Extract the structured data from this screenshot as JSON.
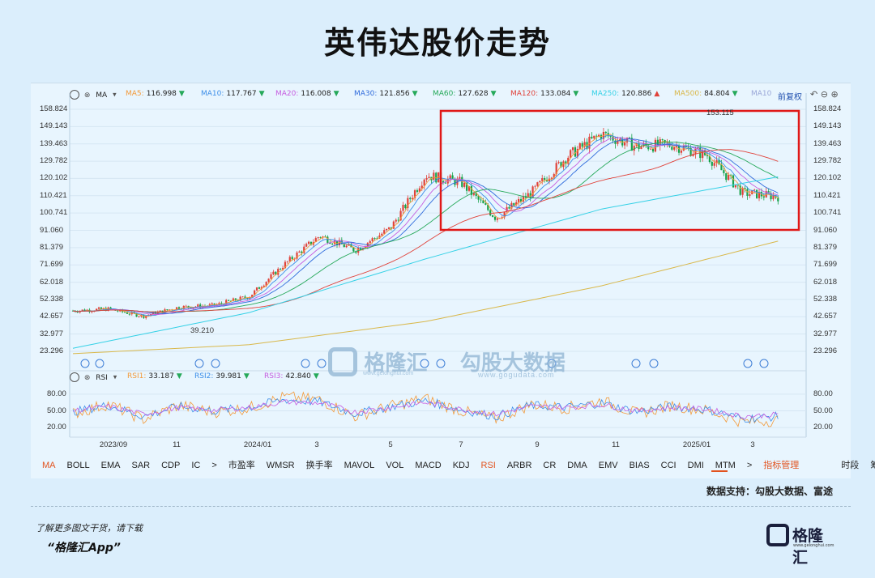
{
  "title": "英伟达股价走势",
  "main_legend": {
    "indicator": "MA",
    "items": [
      {
        "label": "MA5:",
        "value": "116.998",
        "color": "#f39a3a",
        "arrow": "▼"
      },
      {
        "label": "MA10:",
        "value": "117.767",
        "color": "#3d8ee8",
        "arrow": "▼"
      },
      {
        "label": "MA20:",
        "value": "116.008",
        "color": "#c65ce0",
        "arrow": "▼"
      },
      {
        "label": "MA30:",
        "value": "121.856",
        "color": "#2f6bdc",
        "arrow": "▼"
      },
      {
        "label": "MA60:",
        "value": "127.628",
        "color": "#26a95a",
        "arrow": "▼"
      },
      {
        "label": "MA120:",
        "value": "133.084",
        "color": "#e0423a",
        "arrow": "▼"
      },
      {
        "label": "MA250:",
        "value": "120.886",
        "color": "#35d1e6",
        "arrow": "▲"
      },
      {
        "label": "MA500:",
        "value": "84.804",
        "color": "#d9b84a",
        "arrow": "▼"
      },
      {
        "label": "MA10",
        "value": "",
        "color": "#9aa7d8",
        "arrow": ""
      }
    ],
    "adjust": "前复权"
  },
  "rsi_legend": {
    "indicator": "RSI",
    "items": [
      {
        "label": "RSI1:",
        "value": "33.187",
        "color": "#f39a3a",
        "arrow": "▼"
      },
      {
        "label": "RSI2:",
        "value": "39.981",
        "color": "#3d8ee8",
        "arrow": "▼"
      },
      {
        "label": "RSI3:",
        "value": "42.840",
        "color": "#c65ce0",
        "arrow": "▼"
      }
    ]
  },
  "chart_data": [
    {
      "type": "candlestick",
      "title": "英伟达股价走势",
      "y_ticks": [
        "158.824",
        "149.143",
        "139.463",
        "129.782",
        "120.102",
        "110.421",
        "100.741",
        "91.060",
        "81.379",
        "71.699",
        "62.018",
        "52.338",
        "42.657",
        "32.977",
        "23.296"
      ],
      "ylim": [
        23.296,
        158.824
      ],
      "x_ticks": [
        "2023/09",
        "11",
        "2024/01",
        "3",
        "5",
        "7",
        "9",
        "11",
        "2025/01",
        "3"
      ],
      "annotations": [
        {
          "text": "39.210",
          "kind": "low"
        },
        {
          "text": "153.115",
          "kind": "high"
        }
      ],
      "highlight_box": "2024/06 – 2025/04, 91.060 – 158.824",
      "series": [
        {
          "name": "Close",
          "x": [
            "2023/08",
            "2023/09",
            "2023/10",
            "2023/11",
            "2023/12",
            "2024/01",
            "2024/02",
            "2024/03",
            "2024/04",
            "2024/05",
            "2024/06",
            "2024/07",
            "2024/08",
            "2024/09",
            "2024/10",
            "2024/11",
            "2024/12",
            "2025/01",
            "2025/02",
            "2025/03",
            "2025/04"
          ],
          "values": [
            46,
            47,
            43,
            48,
            49,
            54,
            72,
            88,
            80,
            92,
            122,
            118,
            98,
            112,
            132,
            145,
            138,
            139,
            133,
            112,
            110
          ]
        },
        {
          "name": "MA250",
          "x": [
            "2023/08",
            "2024/01",
            "2024/06",
            "2024/11",
            "2025/04"
          ],
          "values": [
            25,
            45,
            75,
            103,
            121
          ]
        },
        {
          "name": "MA500",
          "x": [
            "2023/08",
            "2024/01",
            "2024/06",
            "2024/11",
            "2025/04"
          ],
          "values": [
            22,
            27,
            40,
            60,
            85
          ]
        }
      ]
    },
    {
      "type": "line",
      "title": "RSI",
      "y_ticks": [
        "80.00",
        "50.00",
        "20.00"
      ],
      "ylim": [
        10,
        90
      ],
      "x_ticks": [
        "2023/09",
        "11",
        "2024/01",
        "3",
        "5",
        "7",
        "9",
        "11",
        "2025/01",
        "3"
      ],
      "series": [
        {
          "name": "RSI1",
          "values": [
            45,
            62,
            35,
            60,
            48,
            55,
            75,
            70,
            40,
            58,
            72,
            50,
            35,
            62,
            55,
            68,
            45,
            60,
            50,
            30,
            33
          ]
        },
        {
          "name": "RSI2",
          "values": [
            48,
            60,
            40,
            58,
            50,
            56,
            70,
            66,
            45,
            57,
            68,
            52,
            40,
            60,
            56,
            64,
            48,
            58,
            52,
            36,
            40
          ]
        },
        {
          "name": "RSI3",
          "values": [
            50,
            58,
            44,
            56,
            51,
            56,
            66,
            64,
            48,
            56,
            65,
            53,
            44,
            58,
            56,
            61,
            50,
            56,
            53,
            40,
            43
          ]
        }
      ]
    }
  ],
  "tabs": [
    "MA",
    "BOLL",
    "EMA",
    "SAR",
    "CDP",
    "IC",
    ">",
    "市盈率",
    "WMSR",
    "换手率",
    "MAVOL",
    "VOL",
    "MACD",
    "KDJ",
    "RSI",
    "ARBR",
    "CR",
    "DMA",
    "EMV",
    "BIAS",
    "CCI",
    "DMI",
    "MTM",
    ">",
    "指标管理",
    "时段",
    "筹码"
  ],
  "watermark": {
    "brand": "格隆汇",
    "brand_url": "www.gelonghui.com",
    "brand2": "勾股大数据",
    "brand2_url": "www.gogudata.com"
  },
  "source": "数据支持：勾股大数据、富途",
  "footer": {
    "line1": "了解更多图文干货，请下载",
    "line2": "“格隆汇App”"
  },
  "logo_text": "格隆汇",
  "logo_url": "www.gelonghui.com"
}
